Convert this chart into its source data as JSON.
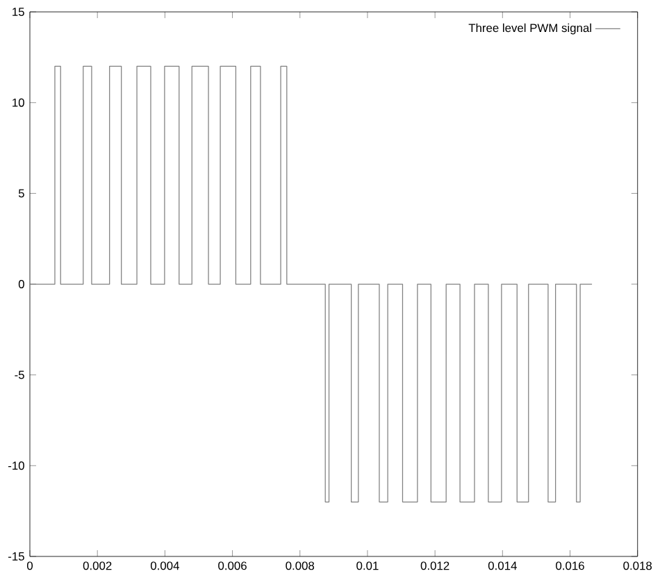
{
  "chart_data": {
    "type": "step",
    "x": [
      0,
      0.00074,
      0.00091,
      0.00158,
      0.00183,
      0.00236,
      0.00271,
      0.00317,
      0.00358,
      0.00399,
      0.00442,
      0.0048,
      0.00529,
      0.00564,
      0.0061,
      0.00654,
      0.00683,
      0.00743,
      0.00761,
      0.00875,
      0.00886,
      0.00952,
      0.00973,
      0.01035,
      0.0106,
      0.01104,
      0.01148,
      0.01188,
      0.01233,
      0.01274,
      0.01317,
      0.01358,
      0.01397,
      0.01443,
      0.01477,
      0.01535,
      0.01557,
      0.01619,
      0.0163,
      0.01665
    ],
    "series": [
      {
        "name": "Three level PWM signal",
        "color": "#808080",
        "values": [
          0,
          12,
          0,
          12,
          0,
          12,
          0,
          12,
          0,
          12,
          0,
          12,
          0,
          12,
          0,
          12,
          0,
          12,
          0,
          -12,
          0,
          -12,
          0,
          -12,
          0,
          -12,
          0,
          -12,
          0,
          -12,
          0,
          -12,
          0,
          -12,
          0,
          -12,
          0,
          -12,
          0,
          0
        ]
      }
    ],
    "xlim": [
      0,
      0.018
    ],
    "ylim": [
      -15,
      15
    ],
    "xticks": [
      0,
      0.002,
      0.004,
      0.006,
      0.008,
      0.01,
      0.012,
      0.014,
      0.016,
      0.018
    ],
    "yticks": [
      -15,
      -10,
      -5,
      0,
      5,
      10,
      15
    ],
    "grid": false,
    "legend": "top right"
  }
}
